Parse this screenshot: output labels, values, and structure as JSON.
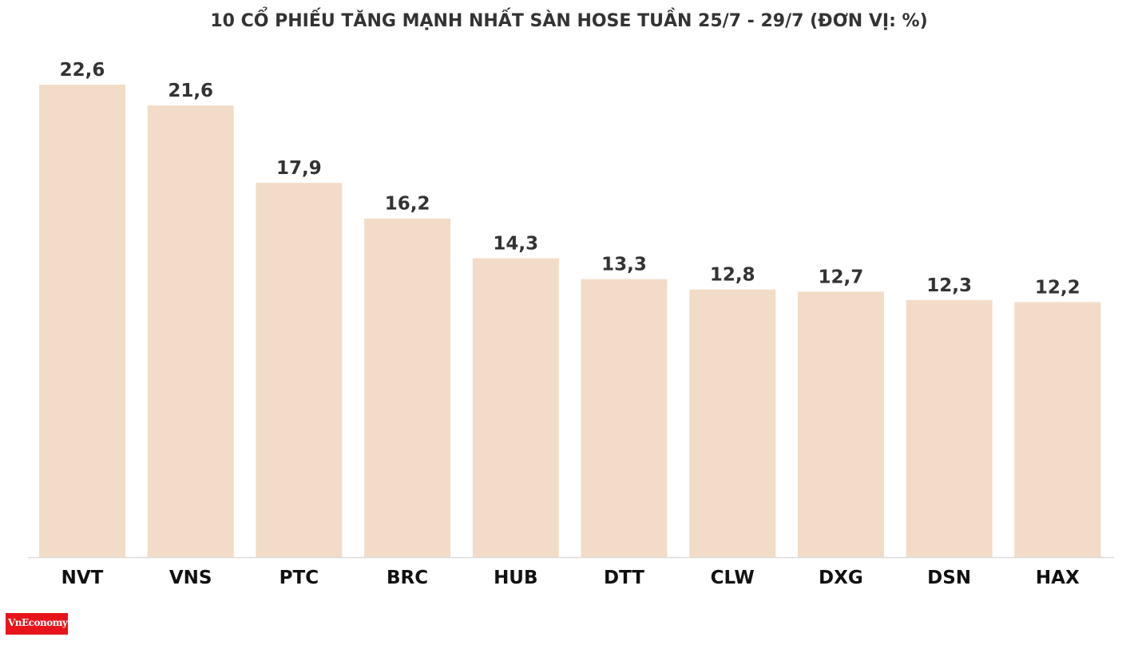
{
  "chart_data": {
    "type": "bar",
    "title": "10 CỔ PHIẾU TĂNG MẠNH NHẤT SÀN HOSE TUẦN 25/7 - 29/7 (ĐƠN VỊ: %)",
    "categories": [
      "NVT",
      "VNS",
      "PTC",
      "BRC",
      "HUB",
      "DTT",
      "CLW",
      "DXG",
      "DSN",
      "HAX"
    ],
    "values": [
      22.6,
      21.6,
      17.9,
      16.2,
      14.3,
      13.3,
      12.8,
      12.7,
      12.3,
      12.2
    ],
    "data_labels": [
      "22,6",
      "21,6",
      "17,9",
      "16,2",
      "14,3",
      "13,3",
      "12,8",
      "12,7",
      "12,3",
      "12,2"
    ],
    "xlabel": "",
    "ylabel": "",
    "ylim": [
      0,
      22.6
    ],
    "grid": false,
    "legend": "none",
    "bar_color": "#f2dcc8",
    "text_color": "#333333"
  },
  "logo": {
    "text": "VnEconomy",
    "color": "#e8141b"
  }
}
